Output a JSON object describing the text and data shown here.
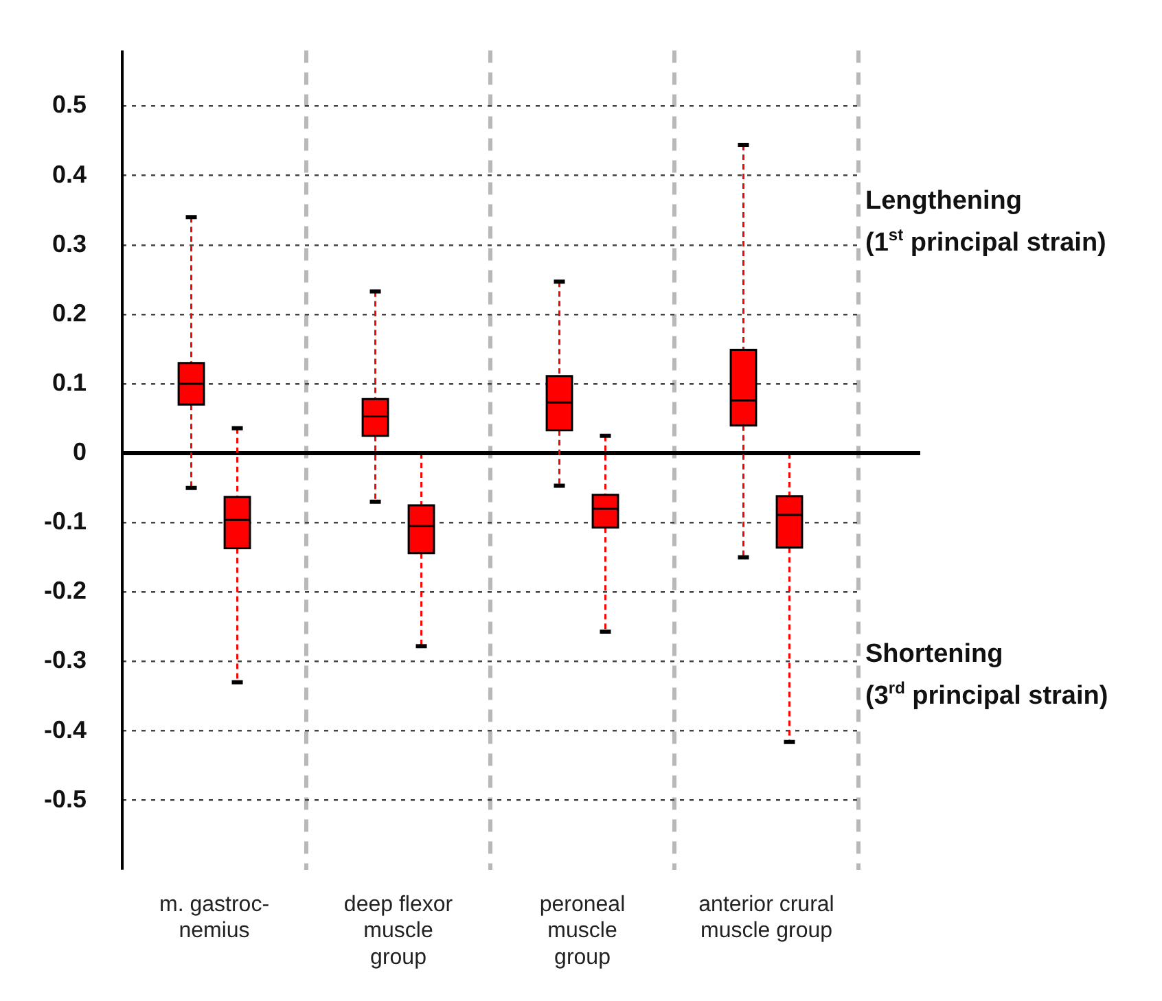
{
  "chart_data": {
    "type": "box",
    "categories": [
      "m. gastroc-\nnemius",
      "deep flexor\nmuscle\ngroup",
      "peroneal\nmuscle\ngroup",
      "anterior crural\nmuscle group"
    ],
    "series": [
      {
        "color": "#ff0000",
        "boxes": [
          {
            "low": -0.05,
            "q1": 0.07,
            "median": 0.1,
            "q3": 0.13,
            "high": 0.34
          },
          {
            "low": -0.07,
            "q1": 0.025,
            "median": 0.053,
            "q3": 0.078,
            "high": 0.233
          },
          {
            "low": -0.047,
            "q1": 0.033,
            "median": 0.073,
            "q3": 0.111,
            "high": 0.247
          },
          {
            "low": -0.15,
            "q1": 0.04,
            "median": 0.076,
            "q3": 0.149,
            "high": 0.444
          }
        ]
      },
      {
        "color": "#ff0000",
        "boxes": [
          {
            "low": -0.33,
            "q1": -0.137,
            "median": -0.096,
            "q3": -0.063,
            "high": 0.036
          },
          {
            "low": -0.278,
            "q1": -0.144,
            "median": -0.105,
            "q3": -0.075,
            "high": 0
          },
          {
            "low": -0.257,
            "q1": -0.107,
            "median": -0.08,
            "q3": -0.06,
            "high": 0.025
          },
          {
            "low": -0.416,
            "q1": -0.136,
            "median": -0.089,
            "q3": -0.062,
            "high": 0
          }
        ]
      }
    ],
    "ylim": [
      -0.6,
      0.58
    ],
    "yticks": [
      -0.5,
      -0.4,
      -0.3,
      -0.2,
      -0.1,
      0,
      0.1,
      0.2,
      0.3,
      0.4,
      0.5
    ],
    "grid": true,
    "ref_lines": [
      {
        "axis": "y",
        "value": 0,
        "color": "#000000"
      }
    ],
    "annotations": [
      "Lengthening\n(1$^{st}$ principal strain)",
      "Shortening\n(3$^{rd}$ principal strain)"
    ]
  }
}
